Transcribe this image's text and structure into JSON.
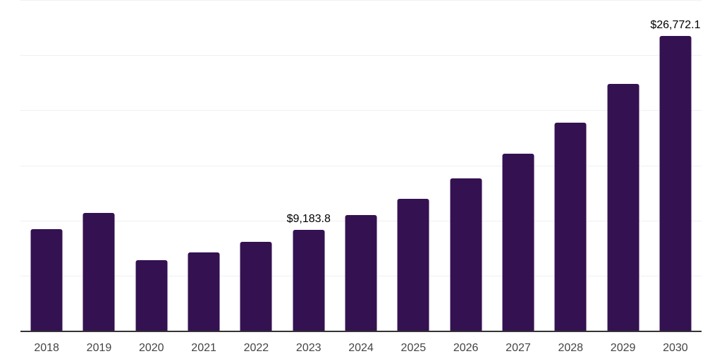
{
  "chart_data": {
    "type": "bar",
    "title": "",
    "xlabel": "",
    "ylabel": "",
    "categories": [
      "2018",
      "2019",
      "2020",
      "2021",
      "2022",
      "2023",
      "2024",
      "2025",
      "2026",
      "2027",
      "2028",
      "2029",
      "2030"
    ],
    "values": [
      9250,
      10720,
      6450,
      7150,
      8150,
      9183.8,
      10530,
      12000,
      13850,
      16140,
      18950,
      22450,
      26772.1
    ],
    "data_labels": [
      null,
      null,
      null,
      null,
      null,
      "$9,183.8",
      null,
      null,
      null,
      null,
      null,
      null,
      "$26,772.1"
    ],
    "ylim": [
      0,
      30000
    ],
    "gridline_interval": 5000,
    "grid": "horizontal-only",
    "legend_position": "none",
    "y_tick_labels_visible": false,
    "colors": {
      "bar": "#341151",
      "background": "#ffffff",
      "gridline": "#f0f0f0",
      "axis_line": "#333333",
      "x_tick_label": "#444444",
      "data_label": "#000000"
    }
  }
}
